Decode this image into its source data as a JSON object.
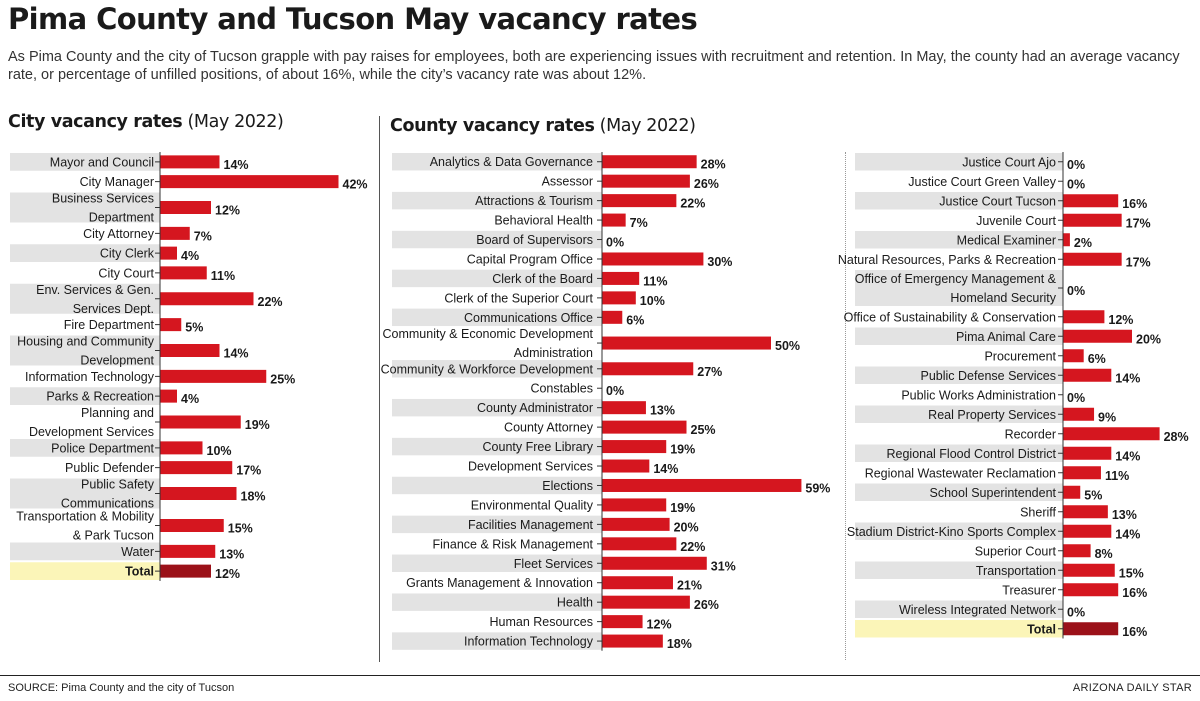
{
  "title": "Pima County and Tucson May vacancy rates",
  "intro": "As Pima County and the city of Tucson grapple with pay raises for employees, both are experiencing issues with recruitment and retention. In May, the county had an average vacancy rate, or percentage of unfilled positions, of about 16%, while the city’s vacancy rate was about 12%.",
  "city_heading": {
    "main": "City vacancy rates",
    "sub": " (May 2022)"
  },
  "county_heading": {
    "main": "County vacancy rates",
    "sub": " (May 2022)"
  },
  "footer": {
    "source": "SOURCE: Pima County and the city of Tucson",
    "credit": "ARIZONA DAILY STAR"
  },
  "colors": {
    "bar": "#d5161f",
    "total_bar": "#9b1119",
    "stripe": "#e3e3e3",
    "total_band": "#fbf5b8",
    "axis": "#333333"
  },
  "chart_data": [
    {
      "type": "bar",
      "orientation": "horizontal",
      "title": "City vacancy rates (May 2022)",
      "unit": "%",
      "categories": [
        "Mayor and Council",
        "City Manager",
        "Business Services|Department",
        "City Attorney",
        "City Clerk",
        "City Court",
        "Env. Services & Gen.|Services Dept.",
        "Fire Department",
        "Housing and Community|Development",
        "Information Technology",
        "Parks & Recreation",
        "Planning and|Development Services",
        "Police Department",
        "Public Defender",
        "Public Safety|Communications",
        "Transportation & Mobility|& Park Tucson",
        "Water",
        "Total"
      ],
      "values": [
        14,
        42,
        12,
        7,
        4,
        11,
        22,
        5,
        14,
        25,
        4,
        19,
        10,
        17,
        18,
        15,
        13,
        12
      ],
      "total_index": 17
    },
    {
      "type": "bar",
      "orientation": "horizontal",
      "title": "County vacancy rates (May 2022)",
      "unit": "%",
      "part": 1,
      "categories": [
        "Analytics & Data Governance",
        "Assessor",
        "Attractions & Tourism",
        "Behavioral Health",
        "Board of Supervisors",
        "Capital Program Office",
        "Clerk of the Board",
        "Clerk of the Superior Court",
        "Communications Office",
        "Community & Economic Development|Administration",
        "Community & Workforce Development",
        "Constables",
        "County Administrator",
        "County Attorney",
        "County Free Library",
        "Development Services",
        "Elections",
        "Environmental Quality",
        "Facilities Management",
        "Finance & Risk Management",
        "Fleet Services",
        "Grants Management & Innovation",
        "Health",
        "Human Resources",
        "Information Technology"
      ],
      "values": [
        28,
        26,
        22,
        7,
        0,
        30,
        11,
        10,
        6,
        50,
        27,
        0,
        13,
        25,
        19,
        14,
        59,
        19,
        20,
        22,
        31,
        21,
        26,
        12,
        18
      ]
    },
    {
      "type": "bar",
      "orientation": "horizontal",
      "title": "County vacancy rates (May 2022)",
      "unit": "%",
      "part": 2,
      "categories": [
        "Justice Court Ajo",
        "Justice Court Green Valley",
        "Justice Court Tucson",
        "Juvenile Court",
        "Medical Examiner",
        "Natural Resources, Parks & Recreation",
        "Office of Emergency Management &|Homeland Security",
        "Office of Sustainability & Conservation",
        "Pima Animal Care",
        "Procurement",
        "Public Defense Services",
        "Public Works Administration",
        "Real Property Services",
        "Recorder",
        "Regional Flood Control District",
        "Regional Wastewater Reclamation",
        "School Superintendent",
        "Sheriff",
        "Stadium District-Kino Sports Complex",
        "Superior Court",
        "Transportation",
        "Treasurer",
        "Wireless Integrated Network",
        "Total"
      ],
      "values": [
        0,
        0,
        16,
        17,
        2,
        17,
        0,
        12,
        20,
        6,
        14,
        0,
        9,
        28,
        14,
        11,
        5,
        13,
        14,
        8,
        15,
        16,
        0,
        16
      ],
      "total_index": 23
    }
  ]
}
